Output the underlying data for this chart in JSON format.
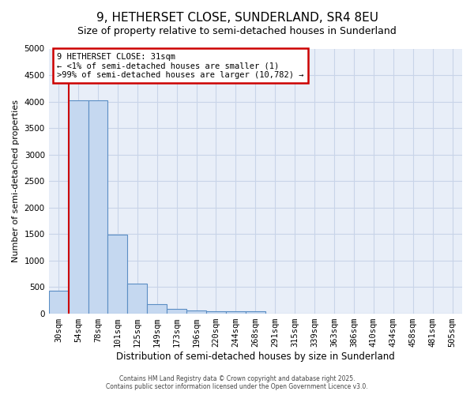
{
  "title": "9, HETHERSET CLOSE, SUNDERLAND, SR4 8EU",
  "subtitle": "Size of property relative to semi-detached houses in Sunderland",
  "xlabel": "Distribution of semi-detached houses by size in Sunderland",
  "ylabel": "Number of semi-detached properties",
  "categories": [
    "30sqm",
    "54sqm",
    "78sqm",
    "101sqm",
    "125sqm",
    "149sqm",
    "173sqm",
    "196sqm",
    "220sqm",
    "244sqm",
    "268sqm",
    "291sqm",
    "315sqm",
    "339sqm",
    "363sqm",
    "386sqm",
    "410sqm",
    "434sqm",
    "458sqm",
    "481sqm",
    "505sqm"
  ],
  "values": [
    420,
    4020,
    4020,
    1480,
    560,
    175,
    90,
    60,
    45,
    40,
    40,
    0,
    0,
    0,
    0,
    0,
    0,
    0,
    0,
    0,
    0
  ],
  "ylim": [
    0,
    5000
  ],
  "bar_color": "#c5d8f0",
  "bar_edge_color": "#5b8ec4",
  "grid_color": "#c8d4e8",
  "background_color": "#e8eef8",
  "annotation_text_line1": "9 HETHERSET CLOSE: 31sqm",
  "annotation_text_line2": "← <1% of semi-detached houses are smaller (1)",
  "annotation_text_line3": ">99% of semi-detached houses are larger (10,782) →",
  "annotation_box_color": "#ffffff",
  "annotation_box_edge": "#cc0000",
  "property_line_color": "#cc0000",
  "property_bar_index": 0,
  "footer_line1": "Contains HM Land Registry data © Crown copyright and database right 2025.",
  "footer_line2": "Contains public sector information licensed under the Open Government Licence v3.0.",
  "title_fontsize": 11,
  "subtitle_fontsize": 9,
  "tick_fontsize": 7.5,
  "ylabel_fontsize": 8,
  "xlabel_fontsize": 8.5
}
